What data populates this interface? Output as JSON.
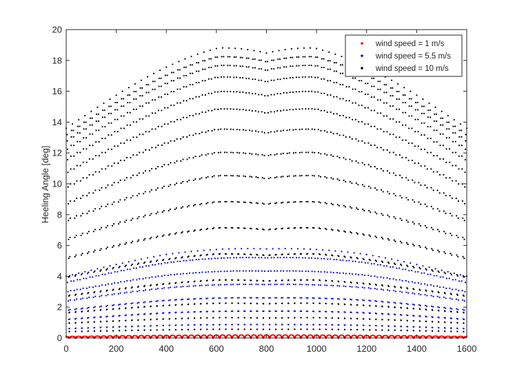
{
  "chart_data": {
    "type": "scatter",
    "title": "",
    "xlabel": "",
    "ylabel": "Heeling Angle [deg]",
    "xlim": [
      0,
      1600
    ],
    "ylim": [
      0,
      20
    ],
    "x_ticks": [
      0,
      200,
      400,
      600,
      800,
      1000,
      1200,
      1400,
      1600
    ],
    "y_ticks": [
      0,
      2,
      4,
      6,
      8,
      10,
      12,
      14,
      16,
      18,
      20
    ],
    "grid": false,
    "legend_position": "top-right",
    "series": [
      {
        "name": "wind speed = 1 m/s",
        "color": "#ff0000",
        "pattern": {
          "period": 25,
          "count": 64,
          "phase": 0,
          "amp_side": 0.1,
          "amp_peak": 0.2,
          "flat_top": 0.1,
          "scallop": 0,
          "levels": [
            0,
            0.15,
            0.3,
            0.45,
            0.6,
            0.75,
            0.9,
            1.0
          ]
        }
      },
      {
        "name": "wind speed = 5.5 m/s",
        "color": "#0000ff",
        "pattern": {
          "period": 25,
          "count": 64,
          "phase": 0,
          "amp_side": 4.0,
          "amp_peak": 6.0,
          "flat_top": 0.25,
          "scallop": 0.15,
          "levels": [
            0,
            0.15,
            0.3,
            0.45,
            0.6,
            0.75,
            0.9,
            1.0
          ]
        }
      },
      {
        "name": "wind speed = 10 m/s",
        "color": "#000000",
        "pattern": {
          "period": 25,
          "count": 64,
          "phase": 0,
          "amp_side": 13.6,
          "amp_peak": 19.2,
          "flat_top": 0.12,
          "scallop": 0.15,
          "levels": [
            0,
            0.03,
            0.07,
            0.12,
            0.2,
            0.29,
            0.38,
            0.47,
            0.56,
            0.64,
            0.72,
            0.79,
            0.85,
            0.9,
            0.94,
            0.97,
            1.0
          ]
        }
      }
    ]
  }
}
